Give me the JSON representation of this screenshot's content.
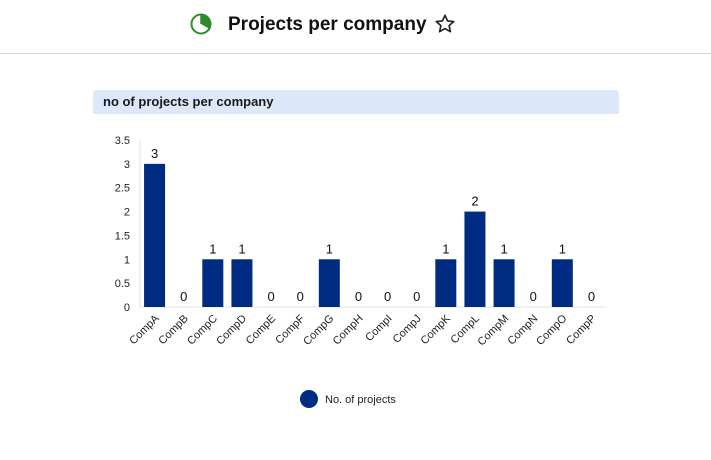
{
  "header": {
    "title": "Projects per company",
    "chart_icon": "pie-chart-icon",
    "favorite_icon": "star-outline-icon",
    "icon_color": "#2e8b2e"
  },
  "panel": {
    "title": "no of projects per company"
  },
  "chart_data": {
    "type": "bar",
    "title": "no of projects per company",
    "xlabel": "",
    "ylabel": "",
    "categories": [
      "CompA",
      "CompB",
      "CompC",
      "CompD",
      "CompE",
      "CompF",
      "CompG",
      "CompH",
      "CompI",
      "CompJ",
      "CompK",
      "CompL",
      "CompM",
      "CompN",
      "CompO",
      "CompP"
    ],
    "series": [
      {
        "name": "No. of projects",
        "values": [
          3,
          0,
          1,
          1,
          0,
          0,
          1,
          0,
          0,
          0,
          1,
          2,
          1,
          0,
          1,
          0
        ],
        "color": "#002b82"
      }
    ],
    "ylim": [
      0,
      3.5
    ],
    "yticks": [
      "0",
      "0.5",
      "1",
      "1.5",
      "2",
      "2.5",
      "3",
      "3.5"
    ],
    "grid": false,
    "data_labels": true,
    "legend_position": "bottom"
  }
}
